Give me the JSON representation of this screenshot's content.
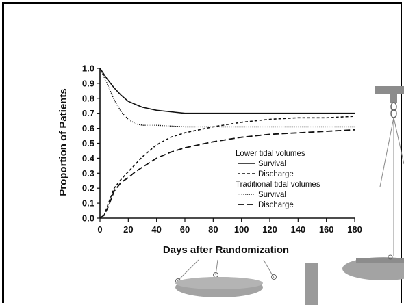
{
  "chart_data": {
    "type": "line",
    "xlabel": "Days after Randomization",
    "ylabel": "Proportion of Patients",
    "xlim": [
      0,
      180
    ],
    "ylim": [
      0,
      1.0
    ],
    "x_ticks": [
      "0",
      "20",
      "40",
      "60",
      "80",
      "100",
      "120",
      "140",
      "160",
      "180"
    ],
    "y_ticks": [
      "0.0",
      "0.1",
      "0.2",
      "0.3",
      "0.4",
      "0.5",
      "0.6",
      "0.7",
      "0.8",
      "0.9",
      "1.0"
    ],
    "legend": {
      "placement": "lower-right",
      "groups": [
        {
          "heading": "Lower tidal volumes",
          "entries": [
            "Survival",
            "Discharge"
          ]
        },
        {
          "heading": "Traditional tidal volumes",
          "entries": [
            "Survival",
            "Discharge"
          ]
        }
      ]
    },
    "series": [
      {
        "name": "Survival",
        "group": "Lower tidal volumes",
        "style": "solid",
        "x": [
          0,
          5,
          10,
          15,
          20,
          25,
          30,
          40,
          50,
          60,
          80,
          100,
          120,
          140,
          160,
          180
        ],
        "y": [
          1.0,
          0.93,
          0.87,
          0.82,
          0.78,
          0.76,
          0.74,
          0.72,
          0.71,
          0.7,
          0.7,
          0.7,
          0.7,
          0.7,
          0.7,
          0.7
        ]
      },
      {
        "name": "Discharge",
        "group": "Lower tidal volumes",
        "style": "short-dash",
        "x": [
          0,
          3,
          6,
          10,
          15,
          20,
          25,
          30,
          40,
          50,
          60,
          70,
          80,
          100,
          120,
          140,
          160,
          180
        ],
        "y": [
          0.0,
          0.02,
          0.1,
          0.2,
          0.26,
          0.31,
          0.36,
          0.41,
          0.49,
          0.54,
          0.57,
          0.59,
          0.61,
          0.64,
          0.66,
          0.67,
          0.67,
          0.68
        ]
      },
      {
        "name": "Survival",
        "group": "Traditional tidal volumes",
        "style": "dotted",
        "x": [
          0,
          5,
          10,
          15,
          20,
          25,
          30,
          40,
          60,
          80,
          100,
          120,
          140,
          160,
          180
        ],
        "y": [
          1.0,
          0.9,
          0.79,
          0.71,
          0.66,
          0.63,
          0.62,
          0.62,
          0.61,
          0.61,
          0.61,
          0.61,
          0.61,
          0.61,
          0.61
        ]
      },
      {
        "name": "Discharge",
        "group": "Traditional tidal volumes",
        "style": "long-dash",
        "x": [
          0,
          3,
          6,
          10,
          15,
          20,
          25,
          30,
          40,
          50,
          60,
          80,
          100,
          120,
          140,
          160,
          180
        ],
        "y": [
          0.0,
          0.02,
          0.08,
          0.18,
          0.24,
          0.27,
          0.31,
          0.34,
          0.4,
          0.44,
          0.47,
          0.51,
          0.54,
          0.56,
          0.57,
          0.58,
          0.59
        ]
      }
    ]
  },
  "decor": {
    "balance_color": "#8c8c8c",
    "balance_pan_color": "#a3a3a3"
  }
}
